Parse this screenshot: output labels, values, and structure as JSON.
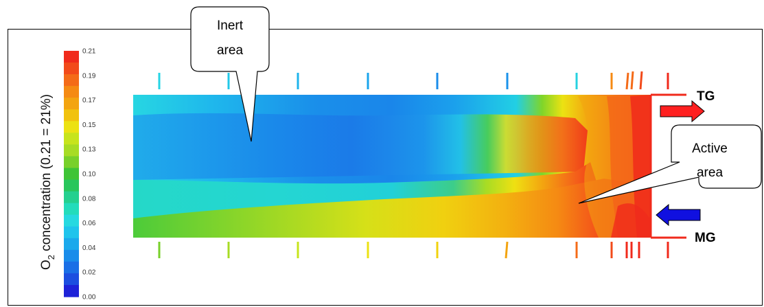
{
  "colorbar": {
    "labels": [
      "0.21",
      "0.19",
      "0.17",
      "0.15",
      "0.13",
      "0.10",
      "0.08",
      "0.06",
      "0.04",
      "0.02",
      "0.00"
    ],
    "colors": [
      "#f02a1b",
      "#f24a1a",
      "#f46b18",
      "#f58a13",
      "#f3a410",
      "#f1c20d",
      "#ece212",
      "#c7e41c",
      "#a7dc24",
      "#78d02a",
      "#3fc436",
      "#28c65c",
      "#24d08f",
      "#23dcbb",
      "#26d9e0",
      "#1fc4ec",
      "#1aa9ec",
      "#198cea",
      "#1a6fe6",
      "#1c4ee0",
      "#1e22d8"
    ]
  },
  "ylabel": {
    "prefix": "O",
    "sub": "2",
    "suffix": " concentration (0.21 = 21%)"
  },
  "callouts": {
    "inert": [
      "Inert",
      "area"
    ],
    "active": [
      "Active",
      "area"
    ]
  },
  "ports": {
    "top": "TG",
    "bottom": "MG"
  },
  "arrow_colors": {
    "out": "#ff2020",
    "in": "#1010e0"
  }
}
